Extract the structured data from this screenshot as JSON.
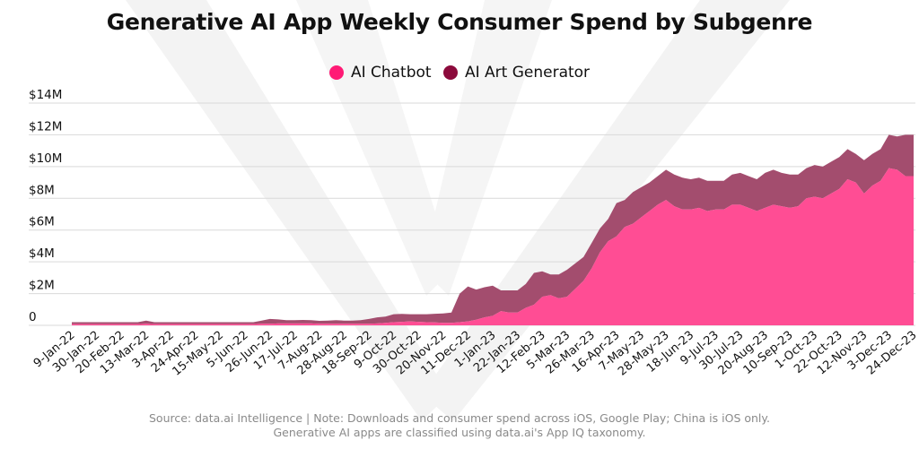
{
  "colors": {
    "chatbot": "#ff4d94",
    "art_generator": "#a34d6e",
    "legend_chatbot": "#ff1a75",
    "legend_art": "#8c0a3c",
    "grid": "#d9d9d9"
  },
  "chart_data": {
    "type": "area",
    "stacked": true,
    "title": "Generative AI App Weekly Consumer Spend by Subgenre",
    "xlabel": "",
    "ylabel": "",
    "ylim": [
      0,
      14
    ],
    "y_unit": "$M",
    "y_ticks": [
      0,
      2,
      4,
      6,
      8,
      10,
      12,
      14
    ],
    "y_tick_labels": [
      "0",
      "$2M",
      "$4M",
      "$6M",
      "$8M",
      "$10M",
      "$12M",
      "$14M"
    ],
    "grid": true,
    "legend_position": "top-center",
    "x_tick_labels": [
      "9-Jan-22",
      "30-Jan-22",
      "20-Feb-22",
      "13-Mar-22",
      "3-Apr-22",
      "24-Apr-22",
      "15-May-22",
      "5-Jun-22",
      "26-Jun-22",
      "17-Jul-22",
      "7-Aug-22",
      "28-Aug-22",
      "18-Sep-22",
      "9-Oct-22",
      "30-Oct-22",
      "20-Nov-22",
      "11-Dec-22",
      "1-Jan-23",
      "22-Jan-23",
      "12-Feb-23",
      "5-Mar-23",
      "26-Mar-23",
      "16-Apr-23",
      "7-May-23",
      "28-May-23",
      "18-Jun-23",
      "9-Jul-23",
      "30-Jul-23",
      "20-Aug-23",
      "10-Sep-23",
      "1-Oct-23",
      "22-Oct-23",
      "12-Nov-23",
      "3-Dec-23",
      "24-Dec-23"
    ],
    "x_tick_every_n_weeks": 3,
    "n_weeks": 103,
    "series": [
      {
        "name": "AI Chatbot",
        "values": [
          0.08,
          0.08,
          0.08,
          0.08,
          0.08,
          0.08,
          0.08,
          0.08,
          0.08,
          0.1,
          0.08,
          0.08,
          0.08,
          0.08,
          0.08,
          0.08,
          0.08,
          0.08,
          0.08,
          0.08,
          0.08,
          0.08,
          0.08,
          0.1,
          0.1,
          0.12,
          0.12,
          0.12,
          0.12,
          0.12,
          0.1,
          0.1,
          0.1,
          0.1,
          0.1,
          0.1,
          0.1,
          0.12,
          0.15,
          0.2,
          0.22,
          0.25,
          0.22,
          0.2,
          0.18,
          0.15,
          0.15,
          0.2,
          0.25,
          0.35,
          0.5,
          0.6,
          0.9,
          0.8,
          0.8,
          1.1,
          1.3,
          1.8,
          1.9,
          1.7,
          1.8,
          2.3,
          2.8,
          3.6,
          4.6,
          5.3,
          5.6,
          6.2,
          6.4,
          6.8,
          7.2,
          7.6,
          7.9,
          7.5,
          7.3,
          7.3,
          7.4,
          7.2,
          7.3,
          7.3,
          7.6,
          7.6,
          7.4,
          7.2,
          7.4,
          7.6,
          7.5,
          7.4,
          7.5,
          8.0,
          8.1,
          8.0,
          8.3,
          8.6,
          9.2,
          9.0,
          8.3,
          8.8,
          9.1,
          9.9,
          9.8,
          9.4,
          9.4
        ]
      },
      {
        "name": "AI Art Generator",
        "values": [
          0.12,
          0.12,
          0.12,
          0.12,
          0.12,
          0.12,
          0.12,
          0.12,
          0.12,
          0.2,
          0.12,
          0.12,
          0.12,
          0.12,
          0.12,
          0.12,
          0.12,
          0.12,
          0.12,
          0.12,
          0.12,
          0.12,
          0.12,
          0.2,
          0.3,
          0.25,
          0.2,
          0.2,
          0.22,
          0.2,
          0.18,
          0.2,
          0.22,
          0.2,
          0.2,
          0.22,
          0.3,
          0.38,
          0.4,
          0.5,
          0.5,
          0.45,
          0.48,
          0.5,
          0.55,
          0.6,
          0.65,
          1.8,
          2.2,
          1.9,
          1.9,
          1.9,
          1.3,
          1.4,
          1.4,
          1.5,
          2.0,
          1.6,
          1.3,
          1.5,
          1.7,
          1.6,
          1.5,
          1.6,
          1.5,
          1.4,
          2.1,
          1.7,
          2.0,
          1.9,
          1.8,
          1.8,
          1.9,
          2.0,
          2.0,
          1.9,
          1.9,
          1.9,
          1.8,
          1.8,
          1.9,
          2.0,
          2.0,
          2.0,
          2.2,
          2.2,
          2.1,
          2.1,
          2.0,
          1.9,
          2.0,
          2.0,
          2.0,
          2.0,
          1.9,
          1.8,
          2.1,
          2.0,
          2.0,
          2.1,
          2.1,
          2.6,
          2.6
        ]
      }
    ]
  },
  "title": "Generative AI App Weekly Consumer Spend by Subgenre",
  "legend": [
    {
      "label": "AI Chatbot"
    },
    {
      "label": "AI Art Generator"
    }
  ],
  "footer": {
    "line1": "Source: data.ai Intelligence | Note: Downloads and consumer spend across iOS, Google Play; China is iOS only.",
    "line2": "Generative AI apps are classified using data.ai's App IQ taxonomy."
  }
}
